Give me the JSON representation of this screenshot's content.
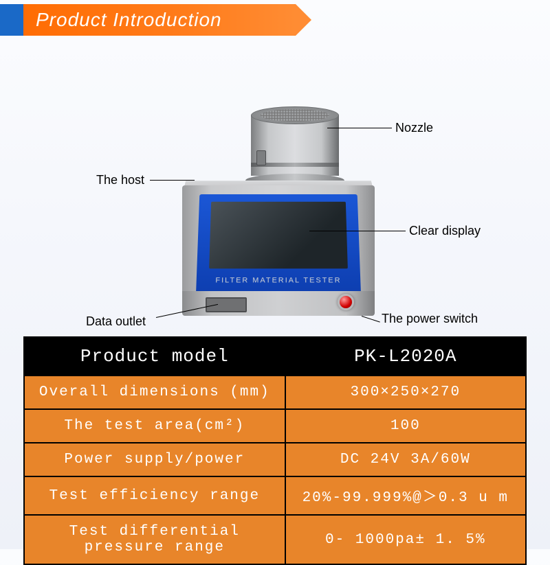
{
  "banner": {
    "title": "Product Introduction"
  },
  "device": {
    "screen_label": "FILTER MATERIAL TESTER"
  },
  "labels": {
    "nozzle": "Nozzle",
    "host": "The host",
    "display": "Clear display",
    "outlet": "Data outlet",
    "power": "The power switch"
  },
  "spec": {
    "header": {
      "left": "Product model",
      "right": "PK-L2020A"
    },
    "rows": [
      {
        "name": "Overall dimensions (mm)",
        "value": "300×250×270"
      },
      {
        "name": "The test area(cm²)",
        "value": "100"
      },
      {
        "name": "Power supply/power",
        "value": "DC 24V 3A/60W"
      },
      {
        "name": "Test efficiency range",
        "value": "20%-99.999%@＞0.3 u m"
      },
      {
        "name": "Test differential pressure range",
        "value": "0- 1000pa± 1. 5%"
      }
    ],
    "colors": {
      "header_bg": "#000000",
      "header_fg": "#ffffff",
      "row_bg": "#e8852a",
      "row_fg": "#ffffff",
      "border": "#000000"
    }
  }
}
